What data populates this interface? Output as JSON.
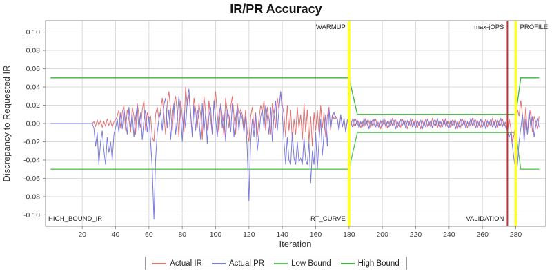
{
  "chart_data": {
    "type": "line",
    "title": "IR/PR Accuracy",
    "xlabel": "Iteration",
    "ylabel": "Discrepancy to Requested IR",
    "x_domain": [
      -2,
      298
    ],
    "y_domain": [
      -0.1125,
      0.1125
    ],
    "x_ticks": [
      20,
      40,
      60,
      80,
      100,
      120,
      140,
      160,
      180,
      200,
      220,
      240,
      260,
      280
    ],
    "y_ticks": [
      0.1,
      0.08,
      0.06,
      0.04,
      0.02,
      0.0,
      -0.02,
      -0.04,
      -0.06,
      -0.08,
      -0.1
    ],
    "grid": true,
    "legend_position": "bottom",
    "x_start": 1,
    "x_step": 1,
    "corner_label": "HIGH_BOUND_IR",
    "series": [
      {
        "name": "Actual IR",
        "color": "#e07272",
        "values": [
          0,
          0,
          0,
          0,
          0,
          0,
          0,
          0,
          0,
          0,
          0,
          0,
          0,
          0,
          0,
          0,
          0,
          0,
          0,
          0,
          0,
          0,
          0,
          0,
          0,
          0,
          0.002,
          -0.003,
          0.004,
          -0.002,
          0.003,
          -0.004,
          0.002,
          -0.003,
          0.005,
          -0.002,
          0.003,
          -0.004,
          0.002,
          0.004,
          0.008,
          0.015,
          -0.005,
          0.012,
          0.02,
          -0.008,
          0.015,
          0.005,
          -0.01,
          0.018,
          0.008,
          -0.012,
          0.022,
          0.01,
          -0.005,
          0.015,
          0.025,
          -0.008,
          0.012,
          0.005,
          0.008,
          -0.015,
          -0.02,
          0.01,
          0.018,
          0.005,
          0.015,
          0.028,
          0.01,
          -0.012,
          0.022,
          0.035,
          0.015,
          -0.008,
          0.02,
          0.03,
          0.012,
          -0.015,
          0.025,
          0.008,
          -0.01,
          0.04,
          0.02,
          0.032,
          0.01,
          -0.012,
          0.028,
          0.015,
          -0.005,
          0.022,
          0.01,
          -0.018,
          0.03,
          0.012,
          -0.008,
          0.025,
          0.005,
          -0.012,
          0.02,
          0.035,
          0.01,
          -0.01,
          0.022,
          0.008,
          -0.015,
          0.028,
          0.012,
          -0.005,
          0.018,
          0.03,
          0.008,
          -0.012,
          0.022,
          0.01,
          0.015,
          0.01,
          -0.005,
          0.015,
          -0.01,
          -0.02,
          0.008,
          0.018,
          -0.005,
          0.012,
          -0.015,
          0.005,
          0.02,
          0.012,
          0.025,
          -0.008,
          0.018,
          0.005,
          -0.012,
          0.022,
          0.01,
          -0.005,
          0.028,
          0.015,
          0.035,
          0.02,
          0.01,
          -0.015,
          0.02,
          -0.008,
          0.015,
          -0.02,
          0.005,
          -0.012,
          0.018,
          -0.005,
          0.01,
          -0.018,
          0.022,
          -0.01,
          0.015,
          -0.02,
          0.008,
          -0.025,
          0.012,
          -0.008,
          0.015,
          -0.01,
          0.02,
          -0.005,
          0.012,
          -0.015,
          0.008,
          0.018,
          -0.008,
          0.01,
          0.005,
          0.008,
          0.004,
          -0.006,
          0.008,
          -0.003,
          0.005,
          -0.008,
          0.003,
          0.001,
          -0.002,
          0.004,
          -0.003,
          0.005,
          -0.002,
          0.003,
          -0.005,
          0.002,
          -0.004,
          0.006,
          -0.002,
          0.003,
          -0.005,
          0.004,
          -0.002,
          0.005,
          -0.003,
          0.002,
          -0.006,
          0.003,
          -0.002,
          0.004,
          -0.005,
          0.002,
          -0.003,
          0.006,
          -0.002,
          0.004,
          -0.005,
          0.002,
          -0.004,
          0.005,
          -0.002,
          0.003,
          -0.006,
          0.002,
          -0.003,
          0.005,
          -0.002,
          0.004,
          -0.005,
          0.002,
          -0.006,
          0.003,
          -0.002,
          0.005,
          -0.003,
          0.002,
          -0.004,
          0.006,
          -0.002,
          0.003,
          -0.005,
          0.002,
          -0.004,
          0.005,
          -0.002,
          0.006,
          -0.003,
          0.002,
          -0.005,
          0.004,
          -0.002,
          0.003,
          -0.006,
          0.002,
          -0.004,
          0.005,
          -0.002,
          0.003,
          -0.005,
          0.002,
          -0.003,
          0.006,
          -0.002,
          0.004,
          -0.005,
          0.002,
          -0.004,
          0.003,
          -0.002,
          0.005,
          -0.004,
          0.002,
          -0.003,
          0.006,
          -0.002,
          0.004,
          -0.005,
          0.003,
          -0.002,
          0.005,
          -0.003,
          0.002,
          -0.01,
          0.005,
          -0.005,
          -0.02,
          -0.012,
          0.005,
          0.015,
          0.008,
          0.025,
          0.01,
          -0.008,
          0.018,
          -0.012,
          0.005,
          0.015,
          -0.01,
          0.008,
          0.002,
          -0.006,
          0.008
        ]
      },
      {
        "name": "Actual PR",
        "color": "#7b7be0",
        "values": [
          0,
          0,
          0,
          0,
          0,
          0,
          0,
          0,
          0,
          0,
          0,
          0,
          0,
          0,
          0,
          0,
          0,
          0,
          0,
          0,
          0,
          0,
          0,
          0,
          0,
          0,
          -0.005,
          -0.025,
          -0.01,
          -0.045,
          -0.02,
          -0.008,
          -0.03,
          -0.045,
          -0.015,
          -0.032,
          -0.02,
          -0.04,
          -0.012,
          -0.005,
          0.005,
          -0.01,
          0.012,
          -0.006,
          0.015,
          0.002,
          -0.012,
          0.018,
          -0.005,
          0.01,
          -0.015,
          0.006,
          0.02,
          -0.008,
          0.012,
          -0.018,
          0.004,
          0.015,
          -0.01,
          0.008,
          -0.02,
          -0.05,
          -0.105,
          -0.04,
          -0.01,
          0.005,
          0.012,
          -0.008,
          0.02,
          0.028,
          -0.005,
          0.015,
          -0.018,
          0.008,
          0.022,
          -0.012,
          0.005,
          0.03,
          0.01,
          -0.02,
          0.015,
          -0.005,
          0.025,
          0.038,
          0.012,
          -0.015,
          0.02,
          -0.008,
          0.015,
          0.005,
          -0.018,
          0.022,
          -0.01,
          0.012,
          -0.022,
          0.008,
          0.018,
          -0.012,
          0.025,
          0.005,
          -0.015,
          0.01,
          0.02,
          -0.005,
          0.012,
          -0.02,
          0.015,
          0.008,
          -0.01,
          0.022,
          -0.015,
          0.005,
          0.018,
          -0.008,
          0.012,
          0.005,
          -0.01,
          0.008,
          -0.03,
          -0.085,
          -0.02,
          0.005,
          -0.015,
          0.01,
          -0.03,
          -0.012,
          0.008,
          0.015,
          -0.005,
          0.02,
          0.008,
          -0.012,
          0.018,
          -0.02,
          0.01,
          0.025,
          -0.008,
          0.015,
          0.035,
          0.01,
          -0.02,
          -0.045,
          -0.015,
          -0.04,
          -0.045,
          -0.01,
          -0.038,
          -0.045,
          -0.02,
          -0.042,
          -0.038,
          -0.045,
          -0.015,
          -0.04,
          -0.045,
          -0.02,
          -0.065,
          -0.03,
          -0.045,
          -0.01,
          -0.05,
          -0.02,
          0.005,
          -0.035,
          -0.01,
          0.01,
          -0.025,
          0.015,
          -0.005,
          0.008,
          0.012,
          0.005,
          0.005,
          -0.008,
          0.01,
          -0.004,
          0.006,
          -0.01,
          0.004,
          0.002,
          0.003,
          -0.004,
          0.005,
          -0.002,
          0.004,
          -0.005,
          0.002,
          -0.003,
          0.006,
          -0.002,
          0.003,
          -0.006,
          0.004,
          -0.002,
          0.005,
          -0.004,
          0.002,
          -0.005,
          0.003,
          -0.002,
          0.006,
          -0.003,
          0.002,
          -0.004,
          0.005,
          -0.002,
          0.004,
          -0.006,
          0.002,
          -0.003,
          0.005,
          -0.002,
          0.004,
          -0.005,
          0.003,
          -0.002,
          0.006,
          -0.004,
          0.002,
          -0.005,
          0.003,
          -0.002,
          0.004,
          -0.006,
          0.002,
          -0.004,
          0.005,
          -0.002,
          0.003,
          -0.005,
          0.004,
          -0.002,
          0.006,
          -0.003,
          0.002,
          -0.004,
          0.005,
          -0.003,
          0.002,
          -0.005,
          0.004,
          -0.002,
          0.003,
          -0.006,
          0.002,
          -0.004,
          0.005,
          -0.002,
          0.004,
          -0.005,
          0.002,
          -0.003,
          0.006,
          -0.002,
          0.004,
          -0.005,
          0.003,
          -0.002,
          0.005,
          -0.004,
          0.002,
          -0.006,
          0.003,
          -0.002,
          0.005,
          -0.004,
          0.002,
          -0.005,
          0.004,
          -0.002,
          0.006,
          -0.003,
          0.002,
          -0.004,
          -0.008,
          -0.015,
          -0.01,
          -0.025,
          -0.04,
          -0.055,
          -0.045,
          -0.02,
          -0.005,
          0.01,
          -0.02,
          0.005,
          -0.012,
          0.015,
          -0.005,
          0.008,
          -0.015,
          -0.002,
          0.006,
          -0.004
        ]
      }
    ],
    "bounds": [
      {
        "name": "Low Bound",
        "color": "#55c455",
        "points": [
          [
            1,
            -0.05
          ],
          [
            180,
            -0.05
          ],
          [
            185,
            -0.01
          ],
          [
            280,
            -0.01
          ],
          [
            283,
            -0.05
          ],
          [
            294,
            -0.05
          ]
        ]
      },
      {
        "name": "High Bound",
        "color": "#3db43d",
        "points": [
          [
            1,
            0.05
          ],
          [
            180,
            0.05
          ],
          [
            185,
            0.01
          ],
          [
            280,
            0.01
          ],
          [
            283,
            0.05
          ],
          [
            294,
            0.05
          ]
        ]
      }
    ],
    "markers": [
      {
        "x": 180,
        "color": "#ffff2e",
        "width": 4,
        "top_label": "WARMUP",
        "bottom_label": "RT_CURVE",
        "label_side": "left"
      },
      {
        "x": 275,
        "color": "#bb3333",
        "width": 2,
        "top_label": "max-jOPS",
        "bottom_label": "VALIDATION",
        "label_side": "left"
      },
      {
        "x": 280,
        "color": "#ffff2e",
        "width": 4,
        "top_label": "PROFILE",
        "bottom_label": "",
        "label_side": "right"
      }
    ],
    "colors": {
      "grid": "#dadada",
      "plot_border": "#8c8c8c",
      "tick_text": "#3c3c3c",
      "marker_label_text": "#222222",
      "background": "#ffffff"
    }
  }
}
